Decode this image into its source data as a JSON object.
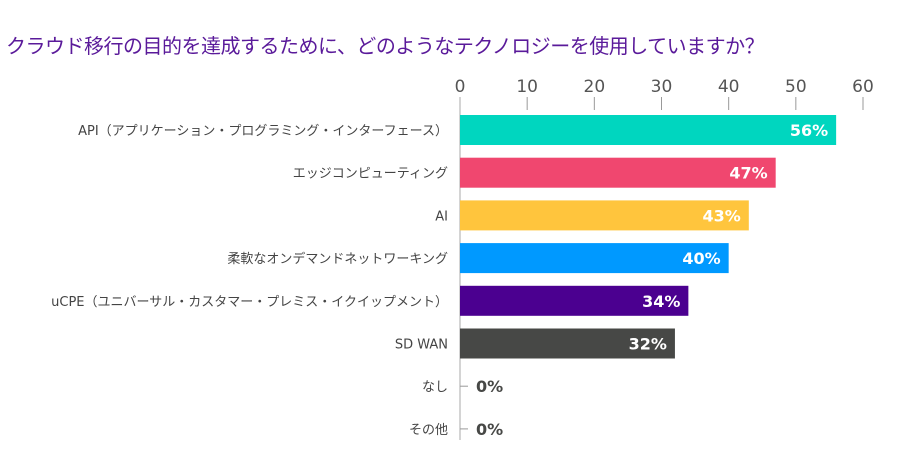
{
  "chart_data": {
    "type": "bar",
    "orientation": "horizontal",
    "title": "クラウド移行の目的を達成するために、どのようなテクノロジーを使用していますか？",
    "categories": [
      "API（アプリケーション・プログラミング・インターフェース）",
      "エッジコンピューティング",
      "AI",
      "柔軟なオンデマンドネットワーキング",
      "uCPE（ユニバーサル・カスタマー・プレミス・イクイップメント）",
      "SD WAN",
      "なし",
      "その他"
    ],
    "values": [
      56,
      47,
      43,
      40,
      34,
      32,
      0,
      0
    ],
    "labels": [
      "56%",
      "47%",
      "43%",
      "40%",
      "34%",
      "32%",
      "0%",
      "0%"
    ],
    "colors": [
      "#00d6bf",
      "#f0476f",
      "#ffc53d",
      "#0099ff",
      "#4b0090",
      "#474846",
      "#474846",
      "#474846"
    ],
    "xlim": [
      0,
      60
    ],
    "xticks": [
      "0",
      "10",
      "20",
      "30",
      "40",
      "50",
      "60"
    ],
    "xaxis_position": "top",
    "grid": false,
    "title_color": "#5a1a9a"
  }
}
